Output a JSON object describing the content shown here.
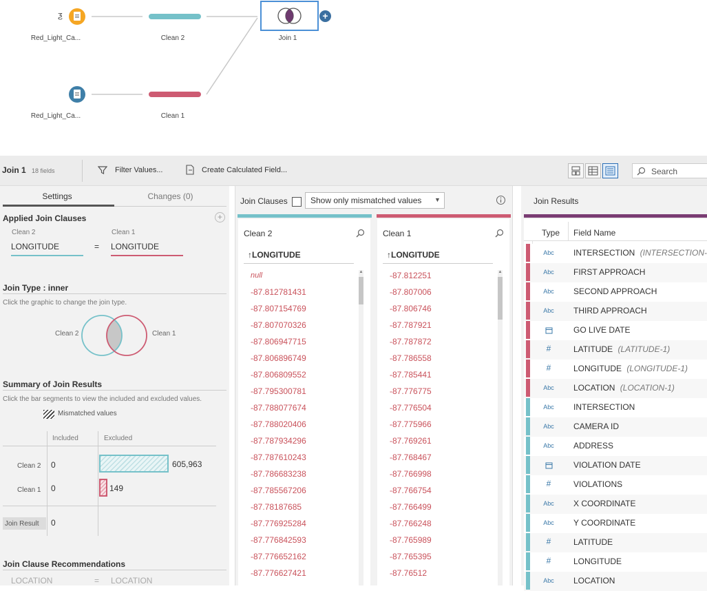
{
  "flow": {
    "source1_label": "Red_Light_Ca...",
    "source2_label": "Red_Light_Ca...",
    "clean2_label": "Clean 2",
    "clean1_label": "Clean 1",
    "join_label": "Join 1",
    "colors": {
      "source1": "#f5a623",
      "source2": "#3f7fa8",
      "clean2": "#75c1c9",
      "clean1": "#cd5b72",
      "selection": "#4a8fd6"
    }
  },
  "toolbar": {
    "title": "Join 1",
    "field_count": "18 fields",
    "filter_label": "Filter Values...",
    "calc_label": "Create Calculated Field...",
    "search_placeholder": "Search"
  },
  "settings": {
    "tab_settings": "Settings",
    "tab_changes": "Changes (0)",
    "applied_title": "Applied Join Clauses",
    "clause": {
      "left_input": "Clean 2",
      "left_field": "LONGITUDE",
      "op": "=",
      "right_input": "Clean 1",
      "right_field": "LONGITUDE"
    },
    "join_type_title": "Join Type : inner",
    "join_type_hint": "Click the graphic to change the join type.",
    "venn_left": "Clean 2",
    "venn_right": "Clean 1",
    "summary_title": "Summary of Join Results",
    "summary_hint": "Click the bar segments to view the included and excluded values.",
    "mismatched_legend": "Mismatched values",
    "col_included": "Included",
    "col_excluded": "Excluded",
    "rows": [
      {
        "name": "Clean 2",
        "included": "0",
        "excluded": "605,963",
        "excluded_fraction": 1.0
      },
      {
        "name": "Clean 1",
        "included": "0",
        "excluded": "149",
        "excluded_fraction": 0.1
      }
    ],
    "result_label": "Join Result",
    "result_value": "0",
    "recommend_title": "Join Clause Recommendations",
    "recommend": {
      "left": "LOCATION",
      "op": "=",
      "right": "LOCATION"
    }
  },
  "join_clauses": {
    "title": "Join Clauses",
    "mismatch_option": "Show only mismatched values",
    "left": {
      "name": "Clean 2",
      "field": "↑LONGITUDE",
      "values": [
        "null",
        "-87.812781431",
        "-87.807154769",
        "-87.807070326",
        "-87.806947715",
        "-87.806896749",
        "-87.806809552",
        "-87.795300781",
        "-87.788077674",
        "-87.788020406",
        "-87.787934296",
        "-87.787610243",
        "-87.786683238",
        "-87.785567206",
        "-87.78187685",
        "-87.776925284",
        "-87.776842593",
        "-87.776652162",
        "-87.776627421"
      ]
    },
    "right": {
      "name": "Clean 1",
      "field": "↑LONGITUDE",
      "values": [
        "-87.812251",
        "-87.807006",
        "-87.806746",
        "-87.787921",
        "-87.787872",
        "-87.786558",
        "-87.785441",
        "-87.776775",
        "-87.776504",
        "-87.775966",
        "-87.769261",
        "-87.768467",
        "-87.766998",
        "-87.766754",
        "-87.766499",
        "-87.766248",
        "-87.765989",
        "-87.765395",
        "-87.76512"
      ]
    }
  },
  "join_results": {
    "title": "Join Results",
    "col_type": "Type",
    "col_field": "Field Name",
    "rows": [
      {
        "source": "clean1",
        "type": "Abc",
        "name": "INTERSECTION",
        "alias": "(INTERSECTION-..."
      },
      {
        "source": "clean1",
        "type": "Abc",
        "name": "FIRST APPROACH",
        "alias": ""
      },
      {
        "source": "clean1",
        "type": "Abc",
        "name": "SECOND APPROACH",
        "alias": ""
      },
      {
        "source": "clean1",
        "type": "Abc",
        "name": "THIRD APPROACH",
        "alias": ""
      },
      {
        "source": "clean1",
        "type": "date",
        "name": "GO LIVE DATE",
        "alias": ""
      },
      {
        "source": "clean1",
        "type": "#",
        "name": "LATITUDE",
        "alias": "(LATITUDE-1)"
      },
      {
        "source": "clean1",
        "type": "#",
        "name": "LONGITUDE",
        "alias": "(LONGITUDE-1)"
      },
      {
        "source": "clean1",
        "type": "Abc",
        "name": "LOCATION",
        "alias": "(LOCATION-1)"
      },
      {
        "source": "clean2",
        "type": "Abc",
        "name": "INTERSECTION",
        "alias": ""
      },
      {
        "source": "clean2",
        "type": "Abc",
        "name": "CAMERA ID",
        "alias": ""
      },
      {
        "source": "clean2",
        "type": "Abc",
        "name": "ADDRESS",
        "alias": ""
      },
      {
        "source": "clean2",
        "type": "date",
        "name": "VIOLATION DATE",
        "alias": ""
      },
      {
        "source": "clean2",
        "type": "#",
        "name": "VIOLATIONS",
        "alias": ""
      },
      {
        "source": "clean2",
        "type": "Abc",
        "name": "X COORDINATE",
        "alias": ""
      },
      {
        "source": "clean2",
        "type": "Abc",
        "name": "Y COORDINATE",
        "alias": ""
      },
      {
        "source": "clean2",
        "type": "#",
        "name": "LATITUDE",
        "alias": ""
      },
      {
        "source": "clean2",
        "type": "#",
        "name": "LONGITUDE",
        "alias": ""
      },
      {
        "source": "clean2",
        "type": "Abc",
        "name": "LOCATION",
        "alias": ""
      }
    ]
  }
}
